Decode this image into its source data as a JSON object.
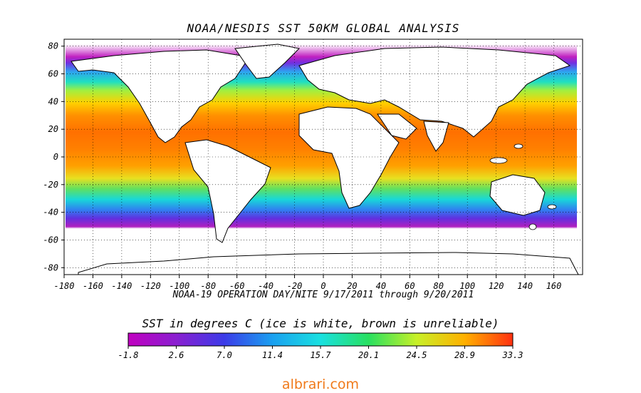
{
  "title": "NOAA/NESDIS SST 50KM GLOBAL ANALYSIS",
  "subtitle": "NOAA-19 OPERATION DAY/NITE  9/17/2011 through 9/20/2011",
  "colorbar": {
    "title": "SST in degrees C (ice is white, brown is unreliable)",
    "labels": [
      "-1.8",
      "2.6",
      "7.0",
      "11.4",
      "15.7",
      "20.1",
      "24.5",
      "28.9",
      "33.3"
    ],
    "colors": [
      "#c000c0",
      "#8a1fd0",
      "#3b3be8",
      "#1aa0f0",
      "#19e0e0",
      "#28e060",
      "#c8f028",
      "#ffb000",
      "#ff3010"
    ]
  },
  "map": {
    "lon_ticks": [
      "-180",
      "-160",
      "-140",
      "-120",
      "-100",
      "-80",
      "-60",
      "-40",
      "-20",
      "0",
      "20",
      "40",
      "60",
      "80",
      "100",
      "120",
      "140",
      "160"
    ],
    "lat_ticks": [
      "80",
      "60",
      "40",
      "20",
      "0",
      "-20",
      "-40",
      "-60",
      "-80"
    ]
  },
  "watermark": "albrari.com"
}
